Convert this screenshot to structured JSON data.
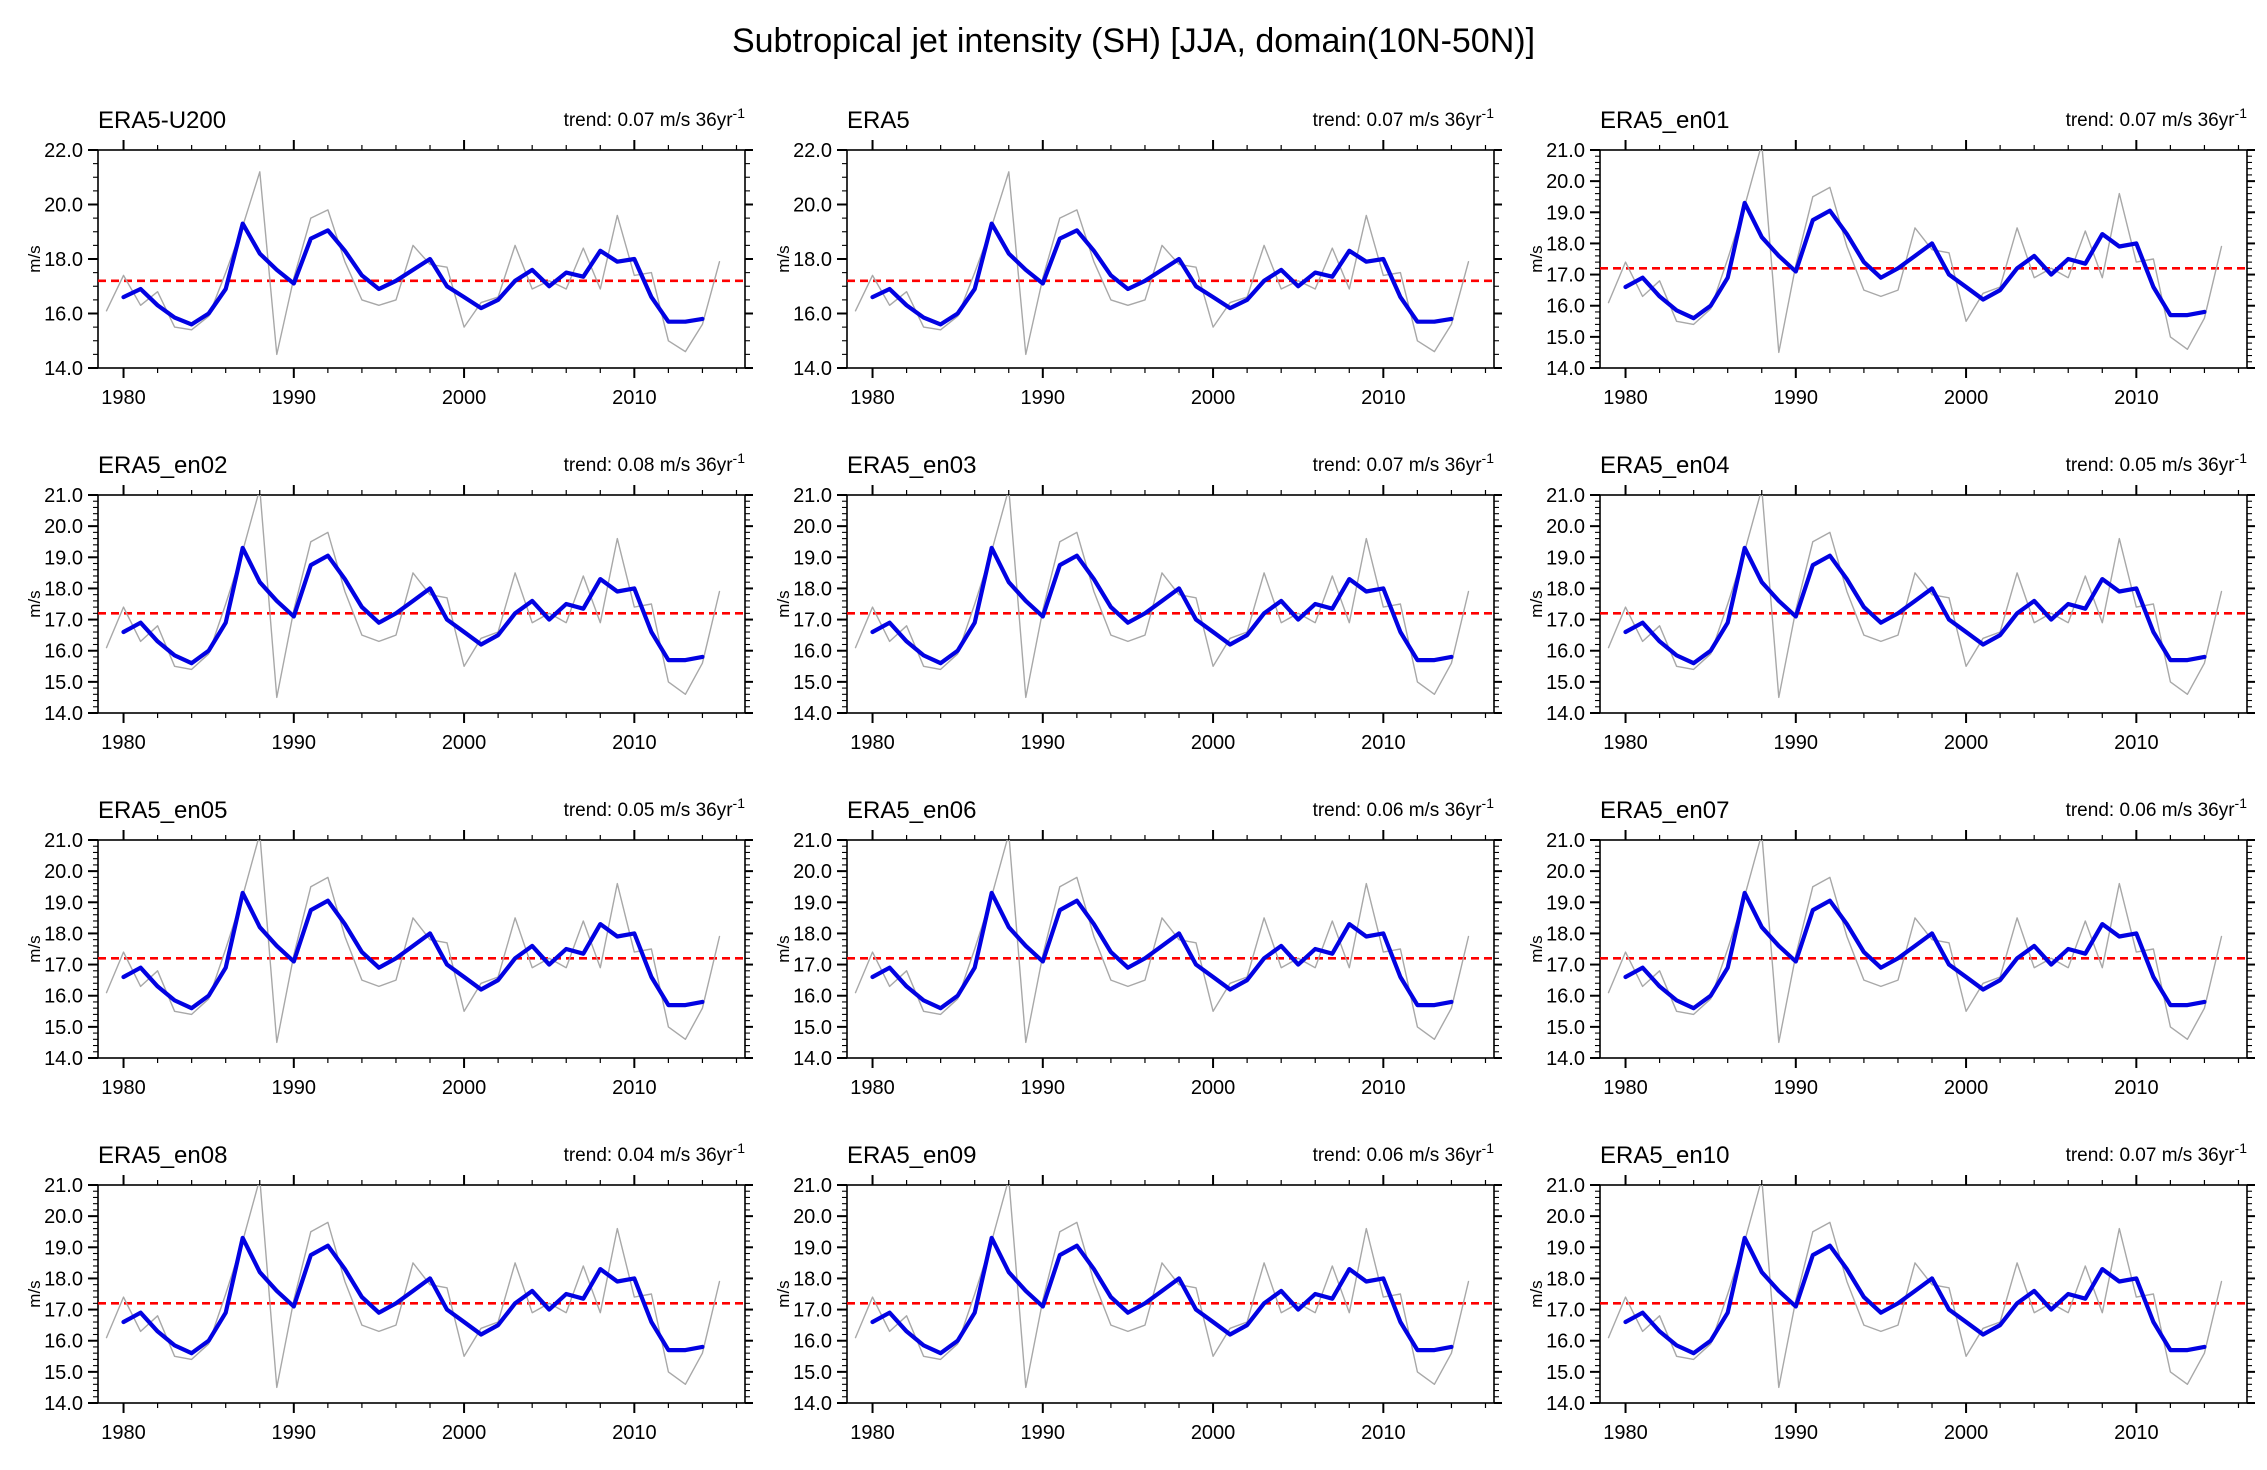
{
  "figure_title": "Subtropical jet intensity (SH) [JJA, domain(10N-50N)]",
  "chart_data": {
    "type": "line",
    "grid": {
      "rows": 4,
      "cols": 3
    },
    "x_axis": {
      "domain": [
        1978.5,
        2016.5
      ],
      "major_ticks": [
        1980,
        1990,
        2000,
        2010
      ],
      "minor_tick_step_years": 2
    },
    "ylabel": "m/s",
    "mean_line_value": 17.2,
    "series": [
      {
        "name": "annual-raw",
        "color_key": "raw",
        "start_year": 1979,
        "values": [
          16.1,
          17.4,
          16.3,
          16.8,
          15.5,
          15.4,
          15.9,
          17.5,
          19.2,
          21.2,
          14.5,
          17.3,
          19.5,
          19.8,
          17.9,
          16.5,
          16.3,
          16.5,
          18.5,
          17.8,
          17.7,
          15.5,
          16.4,
          16.6,
          18.5,
          16.9,
          17.2,
          16.9,
          18.4,
          16.9,
          19.6,
          17.4,
          17.5,
          15.0,
          14.6,
          15.6,
          17.9
        ]
      },
      {
        "name": "smoothed",
        "color_key": "smooth",
        "start_year": 1980,
        "values": [
          16.6,
          16.9,
          16.3,
          15.85,
          15.6,
          16.0,
          16.9,
          19.3,
          18.2,
          17.6,
          17.1,
          18.75,
          19.05,
          18.3,
          17.4,
          16.9,
          17.2,
          17.6,
          18.0,
          17.0,
          16.6,
          16.2,
          16.5,
          17.2,
          17.6,
          17.0,
          17.5,
          17.35,
          18.3,
          17.9,
          18.0,
          16.6,
          15.7,
          15.7,
          15.8
        ]
      }
    ],
    "panels": [
      {
        "title": "ERA5-U200",
        "trend_text": "trend: 0.07 m/s 36yr",
        "trend_value": 0.07,
        "ylim": [
          14,
          22
        ],
        "ytick_step": 2,
        "yminor_step": 0.5
      },
      {
        "title": "ERA5",
        "trend_text": "trend: 0.07 m/s 36yr",
        "trend_value": 0.07,
        "ylim": [
          14,
          22
        ],
        "ytick_step": 2,
        "yminor_step": 0.5
      },
      {
        "title": "ERA5_en01",
        "trend_text": "trend: 0.07 m/s 36yr",
        "trend_value": 0.07,
        "ylim": [
          14,
          21
        ],
        "ytick_step": 1,
        "yminor_step": 0.2
      },
      {
        "title": "ERA5_en02",
        "trend_text": "trend: 0.08 m/s 36yr",
        "trend_value": 0.08,
        "ylim": [
          14,
          21
        ],
        "ytick_step": 1,
        "yminor_step": 0.2
      },
      {
        "title": "ERA5_en03",
        "trend_text": "trend: 0.07 m/s 36yr",
        "trend_value": 0.07,
        "ylim": [
          14,
          21
        ],
        "ytick_step": 1,
        "yminor_step": 0.2
      },
      {
        "title": "ERA5_en04",
        "trend_text": "trend: 0.05 m/s 36yr",
        "trend_value": 0.05,
        "ylim": [
          14,
          21
        ],
        "ytick_step": 1,
        "yminor_step": 0.2
      },
      {
        "title": "ERA5_en05",
        "trend_text": "trend: 0.05 m/s 36yr",
        "trend_value": 0.05,
        "ylim": [
          14,
          21
        ],
        "ytick_step": 1,
        "yminor_step": 0.2
      },
      {
        "title": "ERA5_en06",
        "trend_text": "trend: 0.06 m/s 36yr",
        "trend_value": 0.06,
        "ylim": [
          14,
          21
        ],
        "ytick_step": 1,
        "yminor_step": 0.2
      },
      {
        "title": "ERA5_en07",
        "trend_text": "trend: 0.06 m/s 36yr",
        "trend_value": 0.06,
        "ylim": [
          14,
          21
        ],
        "ytick_step": 1,
        "yminor_step": 0.2
      },
      {
        "title": "ERA5_en08",
        "trend_text": "trend: 0.04 m/s 36yr",
        "trend_value": 0.04,
        "ylim": [
          14,
          21
        ],
        "ytick_step": 1,
        "yminor_step": 0.2
      },
      {
        "title": "ERA5_en09",
        "trend_text": "trend: 0.06 m/s 36yr",
        "trend_value": 0.06,
        "ylim": [
          14,
          21
        ],
        "ytick_step": 1,
        "yminor_step": 0.2
      },
      {
        "title": "ERA5_en10",
        "trend_text": "trend: 0.07 m/s 36yr",
        "trend_value": 0.07,
        "ylim": [
          14,
          21
        ],
        "ytick_step": 1,
        "yminor_step": 0.2
      }
    ],
    "trend_superscript": "-1",
    "colors": {
      "raw": "#a8a8a8",
      "smooth": "#0202e2",
      "mean": "#ff0000",
      "axis": "#000000"
    }
  }
}
